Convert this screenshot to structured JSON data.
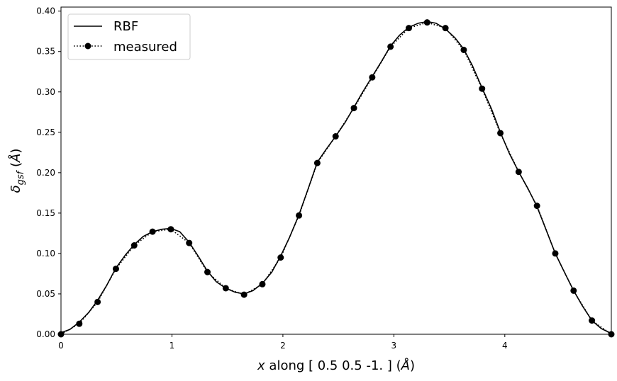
{
  "chart_data": {
    "type": "line",
    "xlabel_parts": {
      "var": "x",
      "text": " along [ 0.5  0.5 -1. ] (",
      "unit": "Å",
      "close": ")"
    },
    "ylabel_parts": {
      "sym": "δ",
      "sub": "gsf",
      "open": " (",
      "unit": "Å",
      "close": ")"
    },
    "xlim": [
      0,
      4.96
    ],
    "ylim": [
      0,
      0.405
    ],
    "xticks": [
      0,
      1,
      2,
      3,
      4
    ],
    "yticks": [
      0.0,
      0.05,
      0.1,
      0.15,
      0.2,
      0.25,
      0.3,
      0.35,
      0.4
    ],
    "xtick_labels": [
      "0",
      "1",
      "2",
      "3",
      "4"
    ],
    "ytick_labels": [
      "0.00",
      "0.05",
      "0.10",
      "0.15",
      "0.20",
      "0.25",
      "0.30",
      "0.35",
      "0.40"
    ],
    "legend": {
      "placement": "upper-left",
      "entries": [
        "RBF",
        "measured"
      ]
    },
    "series": [
      {
        "name": "RBF",
        "style": "solid",
        "color": "#000000",
        "x": [
          0,
          0.08,
          0.165,
          0.25,
          0.33,
          0.41,
          0.495,
          0.58,
          0.66,
          0.74,
          0.825,
          0.91,
          0.99,
          1.07,
          1.155,
          1.24,
          1.32,
          1.4,
          1.485,
          1.57,
          1.65,
          1.73,
          1.815,
          1.9,
          1.98,
          2.06,
          2.145,
          2.23,
          2.31,
          2.39,
          2.475,
          2.56,
          2.64,
          2.72,
          2.805,
          2.89,
          2.97,
          3.05,
          3.135,
          3.22,
          3.3,
          3.38,
          3.465,
          3.55,
          3.63,
          3.71,
          3.795,
          3.88,
          3.96,
          4.04,
          4.125,
          4.21,
          4.29,
          4.37,
          4.455,
          4.54,
          4.62,
          4.7,
          4.785,
          4.87,
          4.96
        ],
        "y": [
          0.002,
          0.006,
          0.015,
          0.027,
          0.042,
          0.06,
          0.082,
          0.098,
          0.111,
          0.121,
          0.127,
          0.13,
          0.131,
          0.127,
          0.114,
          0.096,
          0.078,
          0.065,
          0.057,
          0.052,
          0.05,
          0.054,
          0.063,
          0.077,
          0.097,
          0.12,
          0.148,
          0.181,
          0.213,
          0.229,
          0.245,
          0.262,
          0.281,
          0.3,
          0.319,
          0.338,
          0.357,
          0.37,
          0.38,
          0.385,
          0.387,
          0.385,
          0.378,
          0.367,
          0.353,
          0.332,
          0.305,
          0.279,
          0.25,
          0.224,
          0.201,
          0.18,
          0.158,
          0.13,
          0.1,
          0.076,
          0.054,
          0.035,
          0.017,
          0.007,
          0.001
        ]
      },
      {
        "name": "measured",
        "style": "dotted",
        "marker": "circle",
        "color": "#000000",
        "x": [
          0,
          0.165,
          0.33,
          0.495,
          0.66,
          0.825,
          0.99,
          1.155,
          1.32,
          1.485,
          1.65,
          1.815,
          1.98,
          2.145,
          2.31,
          2.475,
          2.64,
          2.805,
          2.97,
          3.135,
          3.3,
          3.465,
          3.63,
          3.795,
          3.96,
          4.125,
          4.29,
          4.455,
          4.62,
          4.785,
          4.96
        ],
        "y": [
          0.0,
          0.013,
          0.04,
          0.081,
          0.11,
          0.127,
          0.13,
          0.113,
          0.077,
          0.057,
          0.049,
          0.062,
          0.095,
          0.147,
          0.212,
          0.245,
          0.28,
          0.318,
          0.356,
          0.379,
          0.386,
          0.379,
          0.352,
          0.304,
          0.249,
          0.201,
          0.159,
          0.1,
          0.054,
          0.017,
          0.0
        ]
      }
    ]
  }
}
